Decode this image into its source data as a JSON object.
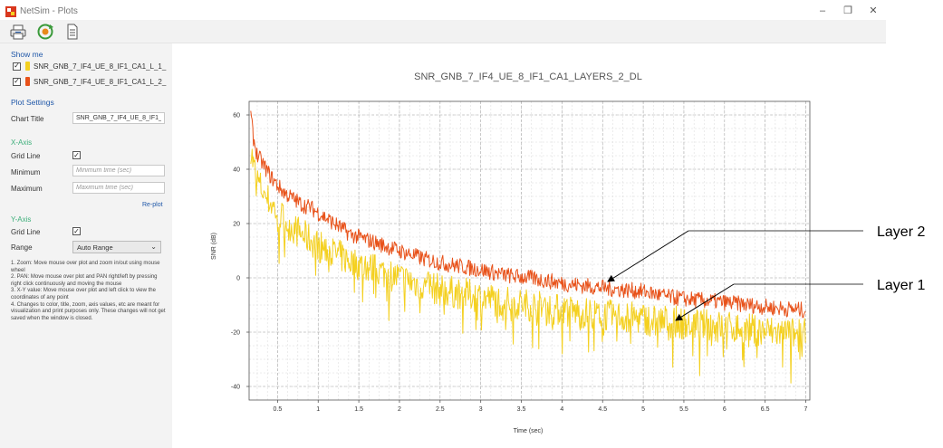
{
  "window": {
    "title": "NetSim - Plots",
    "minimize_glyph": "–",
    "restore_glyph": "❐",
    "close_glyph": "✕"
  },
  "toolbar": {
    "icons": [
      "print-icon",
      "refresh-icon",
      "document-icon"
    ]
  },
  "sidebar": {
    "show_me_title": "Show me",
    "series": [
      {
        "name": "SNR_GNB_7_IF4_UE_8_IF1_CA1_L_1_",
        "color": "#f4d020",
        "checked": true
      },
      {
        "name": "SNR_GNB_7_IF4_UE_8_IF1_CA1_L_2_",
        "color": "#e8521a",
        "checked": true
      }
    ],
    "plot_settings_title": "Plot Settings",
    "chart_title_label": "Chart Title",
    "chart_title_value": "SNR_GNB_7_IF4_UE_8_IF1_CA1_L",
    "x_axis_title": "X-Axis",
    "x_grid_label": "Grid Line",
    "x_min_label": "Minimum",
    "x_min_placeholder": "Minimum time (sec)",
    "x_max_label": "Maximum",
    "x_max_placeholder": "Maximum time (sec)",
    "replot_label": "Re-plot",
    "y_axis_title": "Y-Axis",
    "y_grid_label": "Grid Line",
    "range_label": "Range",
    "range_value": "Auto Range",
    "check_glyph": "✓",
    "help": [
      "1. Zoom: Move mouse over plot and zoom in/out using mouse wheel",
      "2. PAN: Move mouse over plot and PAN right/left by pressing right click continuously and moving the mouse",
      "3. X-Y value: Move mouse over plot and left click to view the coordinates of any point",
      "4. Changes to color, title, zoom, axis values, etc are meant for visualization and print purposes only. These changes will not get saved when the window is closed."
    ]
  },
  "annotations": {
    "layer2": "Layer 2",
    "layer1": "Layer 1"
  },
  "chart_data": {
    "type": "line",
    "title": "SNR_GNB_7_IF4_UE_8_IF1_CA1_LAYERS_2_DL",
    "xlabel": "Time (sec)",
    "ylabel": "SNR (dB)",
    "xlim": [
      0.15,
      7.05
    ],
    "ylim": [
      -45,
      65
    ],
    "x_ticks": [
      0.5,
      1,
      1.5,
      2,
      2.5,
      3,
      3.5,
      4,
      4.5,
      5,
      5.5,
      6,
      6.5,
      7
    ],
    "x_tick_labels": [
      "0.5",
      "1",
      "1.5",
      "2",
      "2.5",
      "3",
      "3.5",
      "4",
      "4.5",
      "5",
      "5.5",
      "6",
      "6.5",
      "7"
    ],
    "y_ticks": [
      -40,
      -20,
      0,
      20,
      40,
      60
    ],
    "y_tick_labels": [
      "-40",
      "-20",
      "0",
      "20",
      "40",
      "60"
    ],
    "grid": true,
    "series": [
      {
        "name": "Layer 2",
        "color": "#e8521a",
        "x": [
          0.17,
          0.2,
          0.25,
          0.3,
          0.4,
          0.5,
          0.6,
          0.7,
          0.8,
          0.9,
          1.0,
          1.2,
          1.4,
          1.6,
          1.8,
          2.0,
          2.3,
          2.6,
          3.0,
          3.3,
          3.6,
          4.0,
          4.3,
          4.6,
          5.0,
          5.3,
          5.6,
          6.0,
          6.3,
          6.6,
          7.0
        ],
        "values": [
          60,
          52,
          45,
          43,
          38,
          34,
          31,
          29,
          27,
          26,
          24,
          20,
          16,
          14,
          12,
          10,
          7,
          5,
          3,
          1,
          0,
          -2,
          -3,
          -4,
          -5,
          -7,
          -8,
          -9,
          -10,
          -11,
          -12
        ]
      },
      {
        "name": "Layer 1",
        "color": "#f4d020",
        "x": [
          0.17,
          0.2,
          0.25,
          0.3,
          0.4,
          0.5,
          0.6,
          0.7,
          0.8,
          0.9,
          1.0,
          1.2,
          1.4,
          1.6,
          1.8,
          2.0,
          2.3,
          2.6,
          3.0,
          3.3,
          3.6,
          4.0,
          4.3,
          4.6,
          5.0,
          5.3,
          5.6,
          6.0,
          6.3,
          6.6,
          7.0
        ],
        "values": [
          48,
          42,
          36,
          33,
          28,
          24,
          21,
          18,
          16,
          14,
          12,
          9,
          6,
          4,
          2,
          0,
          -3,
          -5,
          -7,
          -9,
          -10,
          -12,
          -13,
          -14,
          -15,
          -16,
          -17,
          -18,
          -19,
          -20,
          -21
        ]
      }
    ]
  }
}
